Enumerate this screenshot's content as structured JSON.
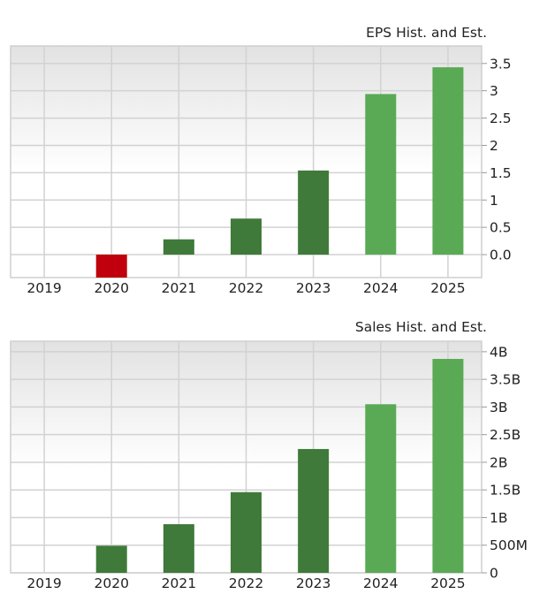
{
  "chart_data": [
    {
      "type": "bar",
      "title": "EPS Hist. and Est.",
      "categories": [
        "2019",
        "2020",
        "2021",
        "2022",
        "2023",
        "2024",
        "2025"
      ],
      "values": [
        null,
        -0.42,
        0.28,
        0.66,
        1.54,
        2.94,
        3.43
      ],
      "bar_kind": [
        "none",
        "negative",
        "historical",
        "historical",
        "historical",
        "estimate",
        "estimate"
      ],
      "ylim": [
        -0.42,
        3.82
      ],
      "yticks": [
        0,
        0.5,
        1,
        1.5,
        2,
        2.5,
        3,
        3.5
      ],
      "ytick_labels": [
        "0.0",
        "0.5",
        "1",
        "1.5",
        "2",
        "2.5",
        "3",
        "3.5"
      ],
      "y_axis_side": "right",
      "grid": true
    },
    {
      "type": "bar",
      "title": "Sales Hist. and Est.",
      "categories": [
        "2019",
        "2020",
        "2021",
        "2022",
        "2023",
        "2024",
        "2025"
      ],
      "values": [
        null,
        490000000,
        880000000,
        1460000000,
        2240000000,
        3050000000,
        3870000000
      ],
      "bar_kind": [
        "none",
        "historical",
        "historical",
        "historical",
        "historical",
        "estimate",
        "estimate"
      ],
      "ylim": [
        0,
        4190000000
      ],
      "yticks": [
        0,
        500000000,
        1000000000,
        1500000000,
        2000000000,
        2500000000,
        3000000000,
        3500000000,
        4000000000
      ],
      "ytick_labels": [
        "0",
        "500M",
        "1B",
        "1.5B",
        "2B",
        "2.5B",
        "3B",
        "3.5B",
        "4B"
      ],
      "y_axis_side": "right",
      "grid": true
    }
  ],
  "colors": {
    "negative": "#c0000c",
    "historical": "#3f7a3a",
    "estimate": "#5aaa55",
    "grid": "#d2d2d2",
    "plot_bg_top": "#e2e2e2",
    "plot_bg_bottom": "#ffffff"
  }
}
